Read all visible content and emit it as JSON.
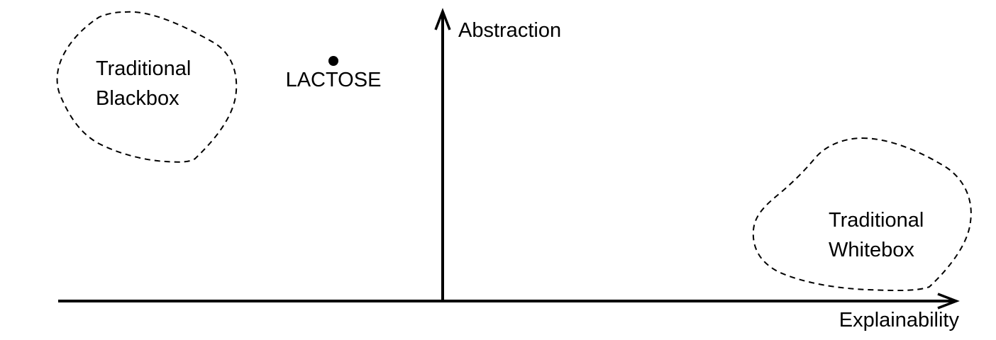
{
  "axes": {
    "y_label": "Abstraction",
    "x_label": "Explainability"
  },
  "regions": [
    {
      "line1": "Traditional",
      "line2": "Blackbox"
    },
    {
      "line1": "Traditional",
      "line2": "Whitebox"
    }
  ],
  "point": {
    "label": "LACTOSE"
  },
  "colors": {
    "stroke": "#000000",
    "background": "#ffffff"
  }
}
